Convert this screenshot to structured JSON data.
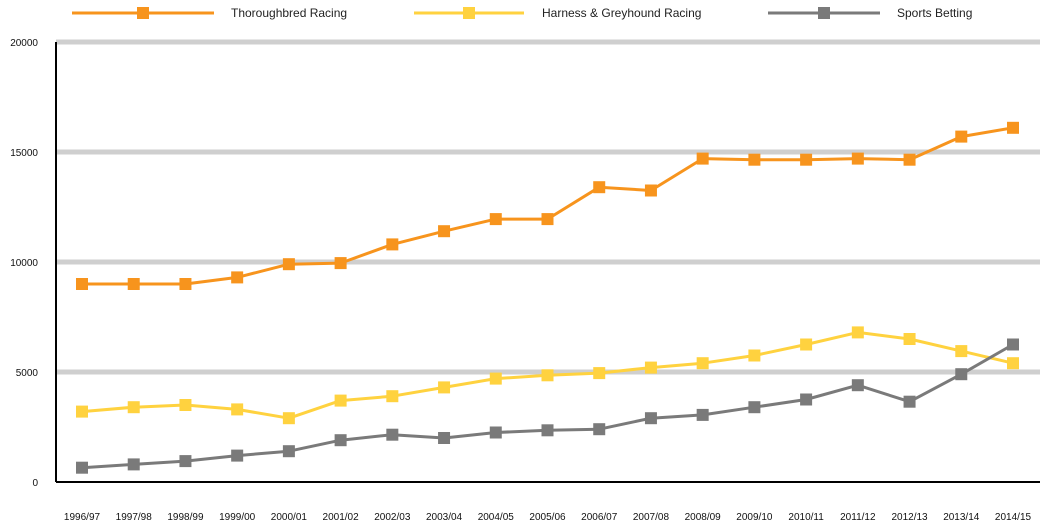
{
  "chart_data": {
    "type": "line",
    "categories": [
      "1996/97",
      "1997/98",
      "1998/99",
      "1999/00",
      "2000/01",
      "2001/02",
      "2002/03",
      "2003/04",
      "2004/05",
      "2005/06",
      "2006/07",
      "2007/08",
      "2008/09",
      "2009/10",
      "2010/11",
      "2011/12",
      "2012/13",
      "2013/14",
      "2014/15"
    ],
    "series": [
      {
        "name": "Thoroughbred Racing",
        "color": "#F7941D",
        "values": [
          9000,
          9000,
          9000,
          9300,
          9900,
          9950,
          10800,
          11400,
          11950,
          11950,
          13400,
          13250,
          14700,
          14650,
          14650,
          14700,
          14650,
          15700,
          16100
        ]
      },
      {
        "name": "Harness & Greyhound Racing",
        "color": "#FFD23F",
        "values": [
          3200,
          3400,
          3500,
          3300,
          2900,
          3700,
          3900,
          4300,
          4700,
          4850,
          4950,
          5200,
          5400,
          5750,
          6250,
          6800,
          6500,
          5950,
          5400
        ]
      },
      {
        "name": "Sports Betting",
        "color": "#7A7A7A",
        "values": [
          650,
          800,
          950,
          1200,
          1400,
          1900,
          2150,
          2000,
          2250,
          2350,
          2400,
          2900,
          3050,
          3400,
          3750,
          4400,
          3650,
          4900,
          6250
        ]
      }
    ],
    "y_ticks": [
      "0",
      "5000",
      "10000",
      "15000",
      "20000"
    ],
    "ylim": [
      0,
      20000
    ],
    "grid": "horizontal",
    "legend_position": "top",
    "title": "",
    "xlabel": "",
    "ylabel": ""
  }
}
